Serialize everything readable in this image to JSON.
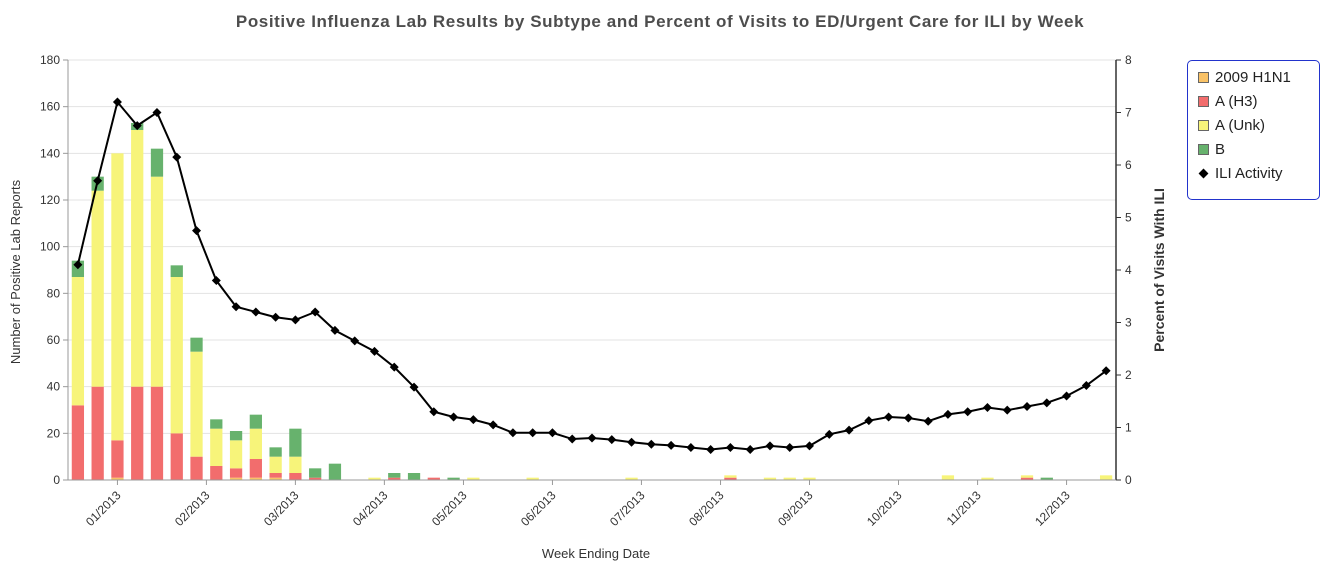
{
  "chart_data": {
    "type": "bar",
    "title": "Positive Influenza Lab Results by Subtype and Percent of Visits to ED/Urgent Care for ILI by Week",
    "xlabel": "Week Ending Date",
    "ylabel": "Number of Positive Lab Reports",
    "y2label": "Percent of Visits With ILI",
    "ylim": [
      0,
      180
    ],
    "y2lim": [
      0,
      8
    ],
    "yticks": [
      "0",
      "20",
      "40",
      "60",
      "80",
      "100",
      "120",
      "140",
      "160",
      "180"
    ],
    "y2ticks": [
      "0",
      "1",
      "2",
      "3",
      "4",
      "5",
      "6",
      "7",
      "8"
    ],
    "xtick_labels": [
      "01/2013",
      "02/2013",
      "03/2013",
      "04/2013",
      "05/2013",
      "06/2013",
      "07/2013",
      "08/2013",
      "09/2013",
      "10/2013",
      "11/2013",
      "12/2013"
    ],
    "xtick_weeks": [
      2.5,
      7,
      11.5,
      16,
      20,
      24.5,
      29,
      33,
      37.5,
      42,
      46,
      50.5
    ],
    "stacked": true,
    "grid": true,
    "legend_position": "right",
    "colors": {
      "h1n1": "#f9c266",
      "h3": "#f26d6d",
      "unk": "#f7f47a",
      "b": "#67b26d",
      "ili": "#000000",
      "legend_border": "#2233cc"
    },
    "series": [
      {
        "name": "2009 H1N1",
        "key": "h1n1",
        "values": [
          0,
          0,
          1,
          0,
          0,
          0,
          0,
          0,
          1,
          1,
          1,
          0,
          0,
          0,
          0,
          0,
          0,
          0,
          0,
          0,
          0,
          0,
          0,
          0,
          0,
          0,
          0,
          0,
          0,
          0,
          0,
          0,
          0,
          0,
          0,
          0,
          0,
          0,
          0,
          0,
          0,
          0,
          0,
          0,
          0,
          0,
          0,
          0,
          0,
          0,
          0,
          0,
          0
        ]
      },
      {
        "name": "A (H3)",
        "key": "h3",
        "values": [
          32,
          40,
          16,
          40,
          40,
          20,
          10,
          6,
          4,
          8,
          2,
          3,
          1,
          0,
          0,
          0,
          1,
          0,
          1,
          0,
          0,
          0,
          0,
          0,
          0,
          0,
          0,
          0,
          0,
          0,
          0,
          0,
          0,
          1,
          0,
          0,
          0,
          0,
          0,
          0,
          0,
          0,
          0,
          0,
          0,
          0,
          0,
          0,
          1,
          0,
          0,
          0,
          0
        ]
      },
      {
        "name": "A (Unk)",
        "key": "unk",
        "values": [
          55,
          84,
          123,
          110,
          90,
          67,
          45,
          16,
          12,
          13,
          7,
          7,
          0,
          0,
          0,
          1,
          0,
          0,
          0,
          0,
          1,
          0,
          0,
          1,
          0,
          0,
          0,
          0,
          1,
          0,
          0,
          0,
          0,
          1,
          0,
          1,
          1,
          1,
          0,
          0,
          0,
          0,
          0,
          0,
          2,
          0,
          1,
          0,
          1,
          0,
          0,
          0,
          2
        ]
      },
      {
        "name": "B",
        "key": "b",
        "values": [
          7,
          6,
          0,
          3,
          12,
          5,
          6,
          4,
          4,
          6,
          4,
          12,
          4,
          7,
          0,
          0,
          2,
          3,
          0,
          1,
          0,
          0,
          0,
          0,
          0,
          0,
          0,
          0,
          0,
          0,
          0,
          0,
          0,
          0,
          0,
          0,
          0,
          0,
          0,
          0,
          0,
          0,
          0,
          0,
          0,
          0,
          0,
          0,
          0,
          1,
          0,
          0,
          0
        ]
      }
    ],
    "ili_activity": {
      "name": "ILI Activity",
      "values": [
        4.1,
        5.7,
        7.2,
        6.75,
        7.0,
        6.15,
        4.75,
        3.8,
        3.3,
        3.2,
        3.1,
        3.05,
        3.2,
        2.85,
        2.65,
        2.45,
        2.15,
        1.77,
        1.3,
        1.2,
        1.15,
        1.05,
        0.9,
        0.9,
        0.9,
        0.78,
        0.8,
        0.77,
        0.72,
        0.68,
        0.66,
        0.62,
        0.58,
        0.62,
        0.58,
        0.65,
        0.62,
        0.65,
        0.87,
        0.95,
        1.13,
        1.2,
        1.18,
        1.12,
        1.25,
        1.3,
        1.38,
        1.33,
        1.4,
        1.47,
        1.6,
        1.8,
        2.08
      ]
    }
  }
}
